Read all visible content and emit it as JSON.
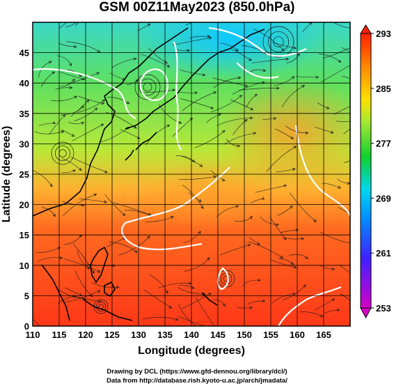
{
  "map": {
    "title": "GSM 00Z11May2023 (850.0hPa)",
    "x_axis": {
      "label": "Longitude (degrees)",
      "range": [
        110,
        170
      ],
      "ticks": [
        "110",
        "115",
        "120",
        "125",
        "130",
        "135",
        "140",
        "145",
        "150",
        "155",
        "160",
        "165"
      ]
    },
    "y_axis": {
      "label": "Latitude (degrees)",
      "range": [
        0,
        50
      ],
      "ticks": [
        "0",
        "5",
        "10",
        "15",
        "20",
        "25",
        "30",
        "35",
        "40",
        "45"
      ]
    },
    "colorbar": {
      "range": [
        253,
        293
      ],
      "labels": [
        "293",
        "285",
        "277",
        "269",
        "261",
        "253"
      ],
      "colors": [
        "#d400c8",
        "#2040ff",
        "#00c8ff",
        "#20d840",
        "#ffe000",
        "#ff3000"
      ]
    },
    "colors": {
      "cold": "#2ad0f0",
      "cool": "#52e05a",
      "mild": "#b8e838",
      "warm": "#ff9a32",
      "hot": "#ff3a1a",
      "contour": "#ffffff",
      "coast": "#000000"
    }
  },
  "credits": {
    "line1": "Drawing by DCL (https://www.gfd-dennou.org/library/dcl/)",
    "line2": "Data from http://database.rish.kyoto-u.ac.jp/arch/jmadata/"
  }
}
